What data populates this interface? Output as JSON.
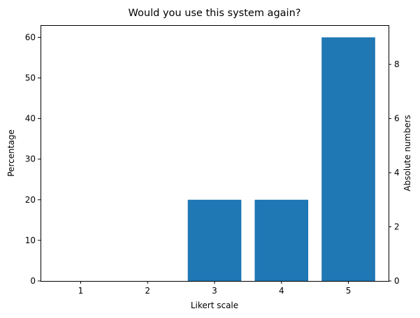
{
  "chart_data": {
    "type": "bar",
    "title": "Would you use this system again?",
    "xlabel": "Likert scale",
    "ylabel": "Percentage",
    "y2label": "Absolute numbers",
    "categories": [
      "1",
      "2",
      "3",
      "4",
      "5"
    ],
    "values": [
      0,
      0,
      20,
      20,
      60
    ],
    "absolute_values": [
      0,
      0,
      3,
      3,
      9
    ],
    "ylim": [
      0,
      63
    ],
    "y2lim": [
      0,
      9.45
    ],
    "yticks": [
      0,
      10,
      20,
      30,
      40,
      50,
      60
    ],
    "y2ticks": [
      0,
      2,
      4,
      6,
      8
    ],
    "grid": false,
    "bar_color": "#1f77b4"
  }
}
